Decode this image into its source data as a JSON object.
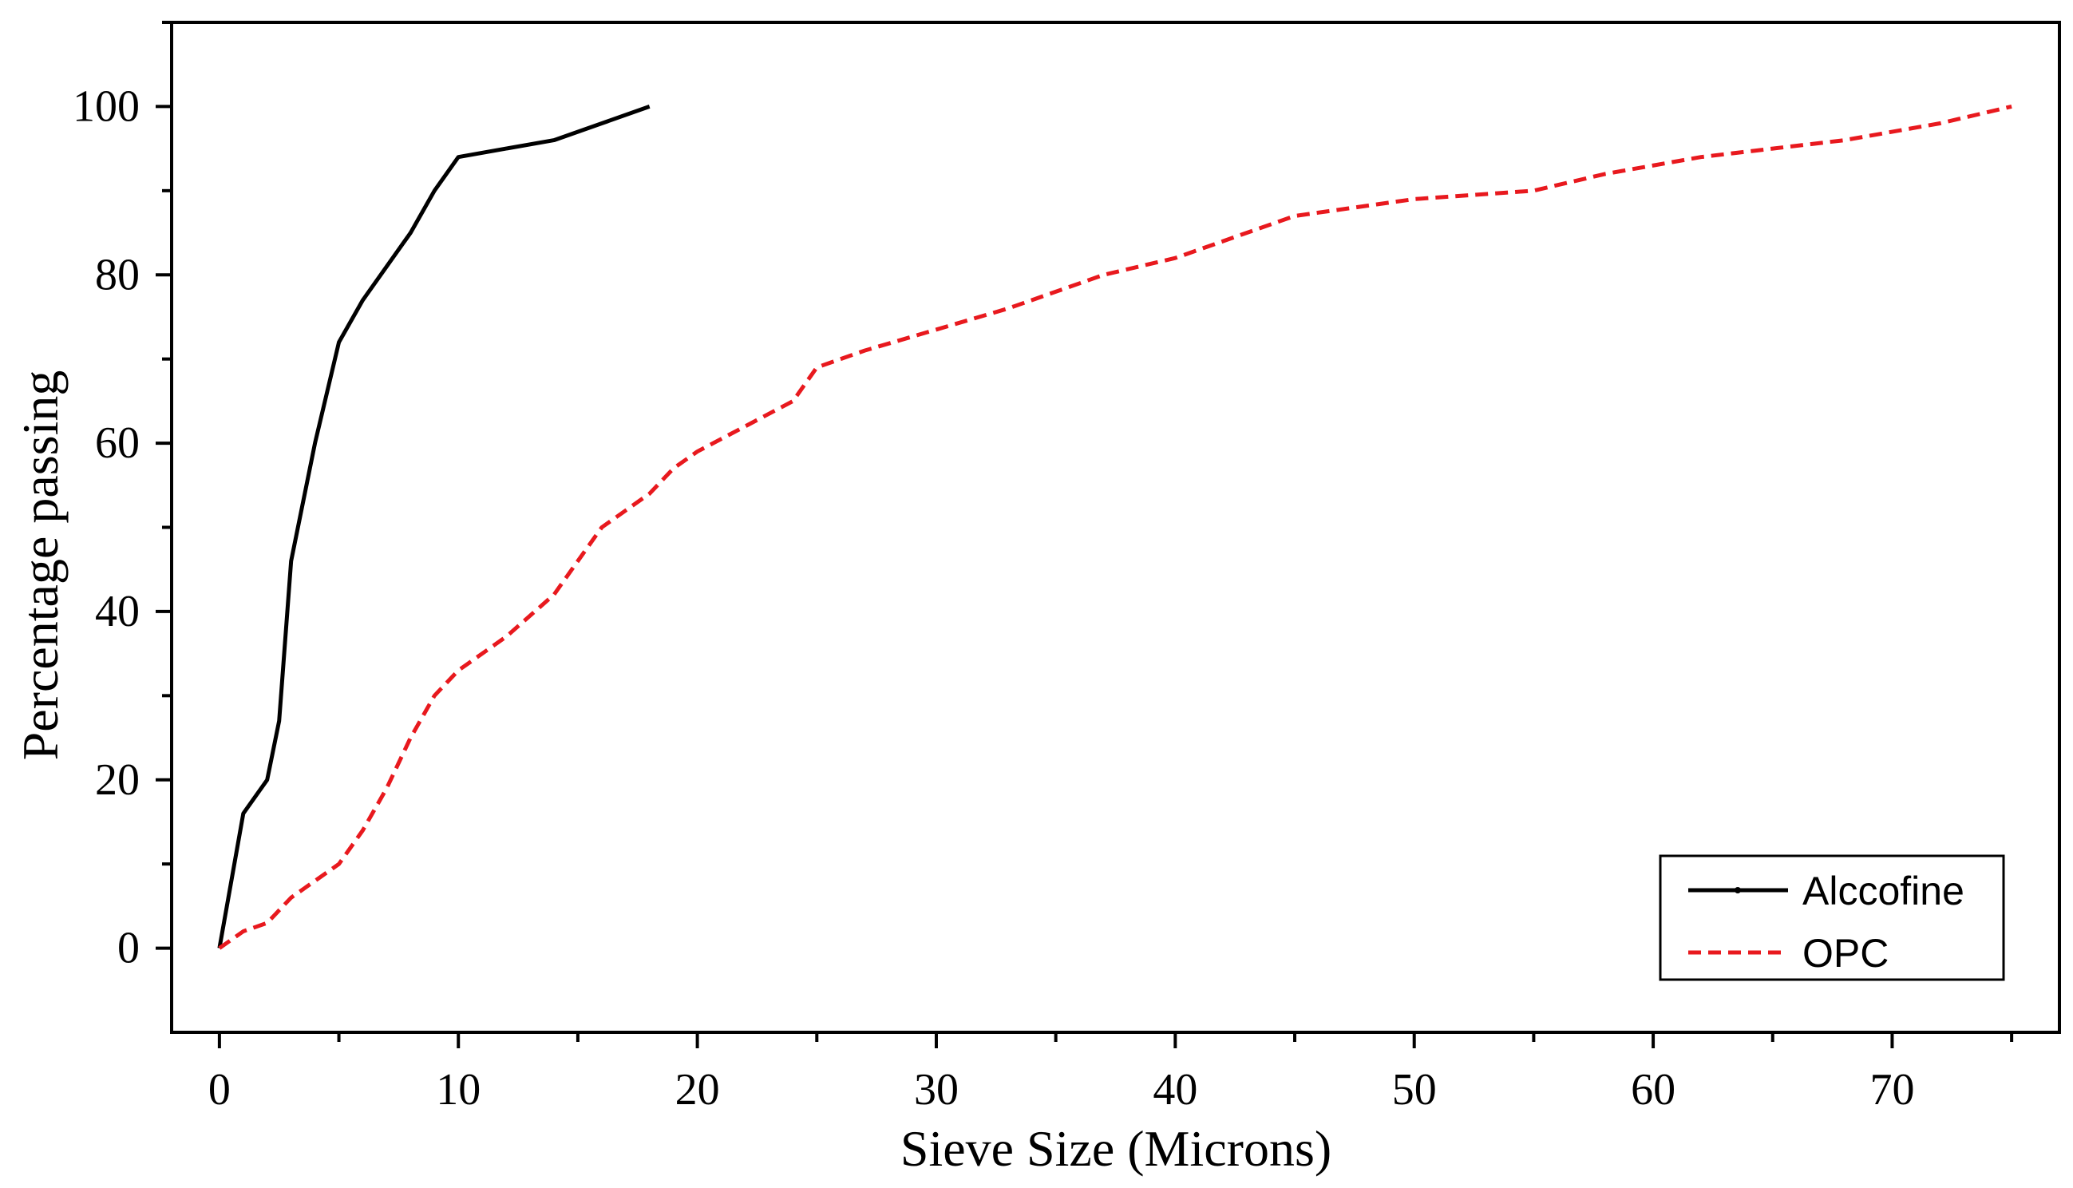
{
  "chart_data": {
    "type": "line",
    "title": "",
    "xlabel": "Sieve Size (Microns)",
    "ylabel": "Percentage passing",
    "xlim": [
      -2,
      77
    ],
    "ylim": [
      -10,
      110
    ],
    "xticks": [
      0,
      10,
      20,
      30,
      40,
      50,
      60,
      70
    ],
    "yticks": [
      0,
      20,
      40,
      60,
      80,
      100
    ],
    "grid": false,
    "legend_position": "bottom-right",
    "series": [
      {
        "name": "Alccofine",
        "color": "#000000",
        "style": "solid",
        "x": [
          0,
          1,
          2,
          2.5,
          3,
          4,
          5,
          6,
          8,
          9,
          10,
          12,
          14,
          16,
          18
        ],
        "y": [
          0,
          16,
          20,
          27,
          46,
          60,
          72,
          77,
          85,
          90,
          94,
          95,
          96,
          98,
          100
        ]
      },
      {
        "name": "OPC",
        "color": "#e8191e",
        "style": "dashed",
        "x": [
          0,
          1,
          2,
          3,
          4,
          5,
          6,
          7,
          8,
          9,
          10,
          12,
          14,
          16,
          18,
          19,
          20,
          22,
          24,
          25,
          27,
          30,
          33,
          37,
          40,
          43,
          45,
          50,
          55,
          58,
          62,
          65,
          68,
          72,
          75
        ],
        "y": [
          0,
          2,
          3,
          6,
          8,
          10,
          14,
          19,
          25,
          30,
          33,
          37,
          42,
          50,
          54,
          57,
          59,
          62,
          65,
          69,
          71,
          73.5,
          76,
          80,
          82,
          85,
          87,
          89,
          90,
          92,
          94,
          95,
          96,
          98,
          100
        ]
      }
    ]
  }
}
